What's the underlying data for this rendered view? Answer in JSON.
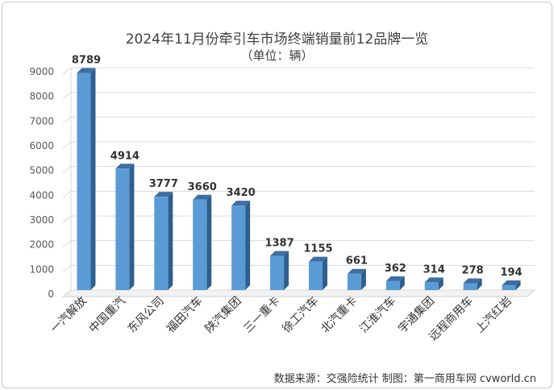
{
  "chart_data": {
    "type": "bar",
    "title": "2024年11月份牵引车市场终端销量前12品牌一览",
    "subtitle": "（单位：辆）",
    "categories": [
      "一汽解放",
      "中国重汽",
      "东风公司",
      "福田汽车",
      "陕汽集团",
      "三一重卡",
      "徐工汽车",
      "北汽重卡",
      "江淮汽车",
      "宇通集团",
      "远程商用车",
      "上汽红岩"
    ],
    "values": [
      8789,
      4914,
      3777,
      3660,
      3420,
      1387,
      1155,
      661,
      362,
      314,
      278,
      194
    ],
    "ylim": [
      0,
      9000
    ],
    "yticks": [
      0,
      1000,
      2000,
      3000,
      4000,
      5000,
      6000,
      7000,
      8000,
      9000
    ],
    "grid": true,
    "bar_color": "#5b9bd5",
    "bar_side_color": "#2e5f8f",
    "bar_top_color": "#3d6fa3"
  },
  "footer": "数据来源：交强险统计   制图：第一商用车网 cvworld.cn"
}
